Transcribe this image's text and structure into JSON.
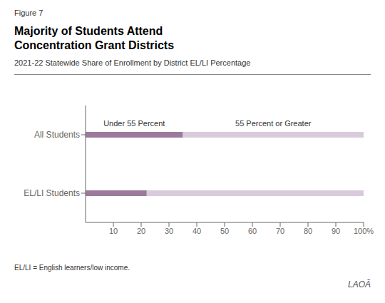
{
  "chart_data": {
    "type": "bar",
    "orientation": "horizontal",
    "stacked": true,
    "grid": false,
    "title": "Majority of Students Attend\nConcentration Grant Districts",
    "subtitle": "2021-22 Statewide Share of Enrollment by District EL/LI Percentage",
    "annotations": [
      "Figure 7",
      "EL/LI = English learners/low income.",
      "LAOĀ"
    ],
    "categories": [
      "All Students",
      "EL/LI Students"
    ],
    "series": [
      {
        "name": "Under 55 Percent",
        "color": "#9B7A9B",
        "values": [
          35,
          22
        ]
      },
      {
        "name": "55 Percent or Greater",
        "color": "#D9CADC",
        "values": [
          65,
          78
        ]
      }
    ],
    "xlim": [
      0,
      100
    ],
    "xticks": [
      10,
      20,
      30,
      40,
      50,
      60,
      70,
      80,
      90,
      {
        "value": 100,
        "label": "100%"
      }
    ]
  }
}
